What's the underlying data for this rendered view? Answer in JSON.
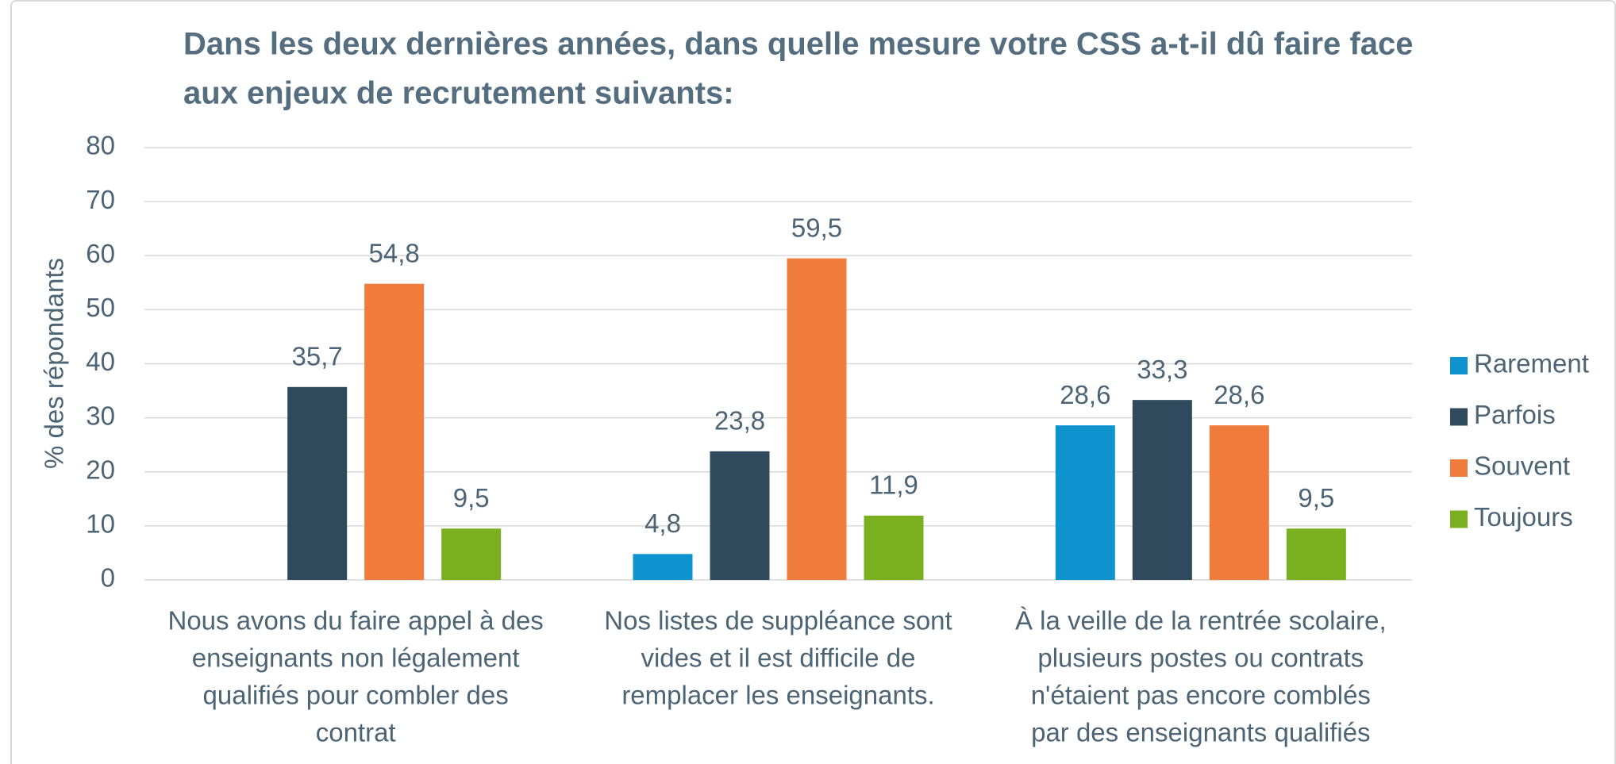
{
  "chart_data": {
    "type": "bar",
    "title": [
      "Dans les deux dernières années, dans quelle mesure votre CSS a-t-il dû faire face",
      "aux enjeux de recrutement suivants:"
    ],
    "ylabel": "% des répondants",
    "categories": [
      [
        "Nous avons du faire appel à des",
        "enseignants non légalement",
        "qualifiés pour combler des",
        "contrat"
      ],
      [
        "Nos listes de suppléance sont",
        "vides et il est difficile de",
        "remplacer les enseignants."
      ],
      [
        "À la veille de la rentrée scolaire,",
        "plusieurs postes ou contrats",
        "n'étaient pas encore comblés",
        "par des enseignants qualifiés"
      ]
    ],
    "series": [
      {
        "name": "Rarement",
        "color": "#0e93cf",
        "values": [
          null,
          4.8,
          28.6
        ],
        "value_labels": [
          null,
          "4,8",
          "28,6"
        ]
      },
      {
        "name": "Parfois",
        "color": "#2f4a5c",
        "values": [
          35.7,
          23.8,
          33.3
        ],
        "value_labels": [
          "35,7",
          "23,8",
          "33,3"
        ]
      },
      {
        "name": "Souvent",
        "color": "#f07c3c",
        "values": [
          54.8,
          59.5,
          28.6
        ],
        "value_labels": [
          "54,8",
          "59,5",
          "28,6"
        ]
      },
      {
        "name": "Toujours",
        "color": "#7aaf1f",
        "values": [
          9.5,
          11.9,
          9.5
        ],
        "value_labels": [
          "9,5",
          "11,9",
          "9,5"
        ]
      }
    ],
    "ylim": [
      0,
      80
    ],
    "yticks": [
      0,
      10,
      20,
      30,
      40,
      50,
      60,
      70,
      80
    ],
    "grid": true,
    "legend": "right"
  }
}
